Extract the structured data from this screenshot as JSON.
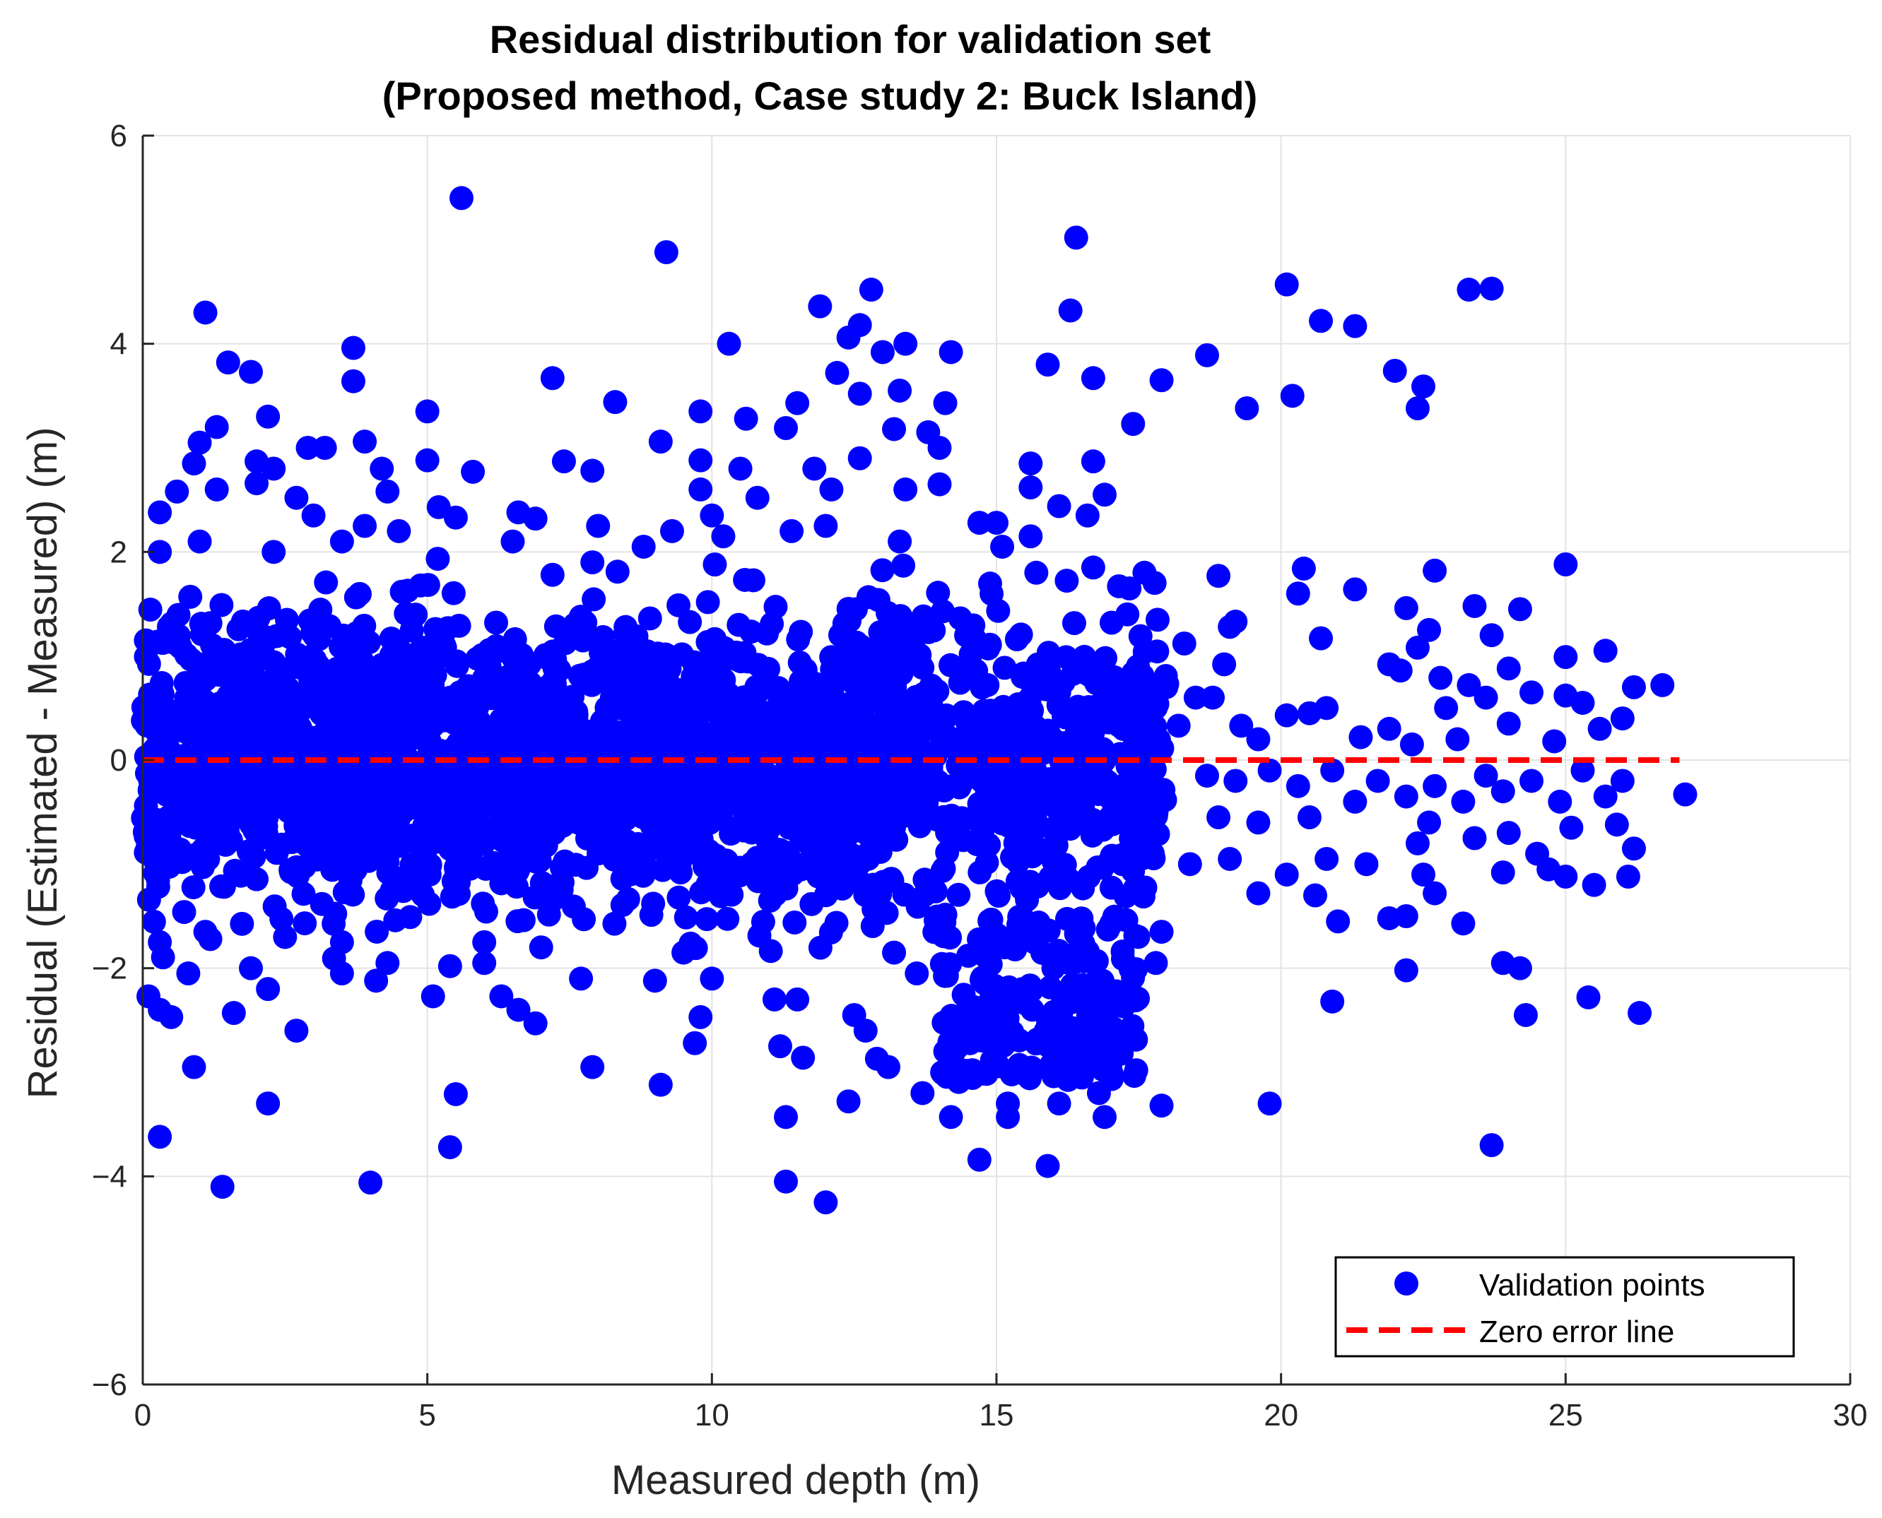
{
  "chart_data": {
    "type": "scatter",
    "title_line1": "Residual distribution for validation set",
    "title_line2": "(Proposed method, Case study 2: Buck Island)",
    "xlabel": "Measured depth (m)",
    "ylabel": "Residual (Estimated - Measured) (m)",
    "xlim": [
      0,
      30
    ],
    "ylim": [
      -6,
      6
    ],
    "xticks": [
      0,
      5,
      10,
      15,
      20,
      25,
      30
    ],
    "yticks": [
      -6,
      -4,
      -2,
      0,
      2,
      4,
      6
    ],
    "xtick_labels": [
      "0",
      "5",
      "10",
      "15",
      "20",
      "25",
      "30"
    ],
    "ytick_labels": [
      "−6",
      "−4",
      "−2",
      "0",
      "2",
      "4",
      "6"
    ],
    "grid": true,
    "legend_position": "bottom-right",
    "legend": {
      "points_label": "Validation points",
      "line_label": "Zero error line"
    },
    "colors": {
      "points": "#0000ff",
      "zero_line": "#ff0000",
      "grid": "#e3e3e3",
      "axis": "#262626"
    },
    "zero_line": {
      "y": 0,
      "x_range": [
        0,
        27
      ]
    },
    "dense_band": {
      "x_range": [
        0,
        18
      ],
      "y_core_range": [
        -1.5,
        1.5
      ],
      "y_spread_range": [
        -2.2,
        2.2
      ],
      "note": "dense cloud of overlapping points between 0 and ~18 m depth"
    },
    "series": [
      {
        "name": "Validation points",
        "points": [
          [
            5.6,
            5.4
          ],
          [
            9.2,
            4.88
          ],
          [
            16.4,
            5.02
          ],
          [
            1.1,
            4.3
          ],
          [
            12.8,
            4.52
          ],
          [
            11.9,
            4.36
          ],
          [
            16.3,
            4.32
          ],
          [
            20.1,
            4.57
          ],
          [
            20.7,
            4.22
          ],
          [
            21.3,
            4.17
          ],
          [
            23.3,
            4.52
          ],
          [
            23.7,
            4.53
          ],
          [
            12.6,
            4.18
          ],
          [
            12.4,
            4.06
          ],
          [
            10.3,
            4.0
          ],
          [
            13.4,
            4.0
          ],
          [
            13.0,
            3.92
          ],
          [
            14.2,
            3.92
          ],
          [
            3.7,
            3.96
          ],
          [
            1.5,
            3.82
          ],
          [
            1.9,
            3.73
          ],
          [
            3.7,
            3.64
          ],
          [
            7.2,
            3.67
          ],
          [
            12.2,
            3.72
          ],
          [
            15.9,
            3.8
          ],
          [
            16.7,
            3.67
          ],
          [
            17.9,
            3.65
          ],
          [
            18.7,
            3.89
          ],
          [
            22.0,
            3.74
          ],
          [
            22.5,
            3.59
          ],
          [
            20.2,
            3.5
          ],
          [
            8.3,
            3.44
          ],
          [
            11.5,
            3.43
          ],
          [
            14.1,
            3.43
          ],
          [
            13.3,
            3.55
          ],
          [
            12.6,
            3.52
          ],
          [
            19.4,
            3.38
          ],
          [
            22.4,
            3.38
          ],
          [
            2.2,
            3.3
          ],
          [
            1.3,
            3.2
          ],
          [
            5.0,
            3.35
          ],
          [
            9.8,
            3.35
          ],
          [
            10.6,
            3.28
          ],
          [
            11.3,
            3.19
          ],
          [
            13.2,
            3.18
          ],
          [
            17.4,
            3.23
          ],
          [
            1.0,
            3.05
          ],
          [
            2.9,
            3.0
          ],
          [
            3.2,
            3.0
          ],
          [
            3.9,
            3.06
          ],
          [
            9.1,
            3.06
          ],
          [
            14.0,
            3.0
          ],
          [
            13.8,
            3.15
          ],
          [
            0.9,
            2.85
          ],
          [
            2.0,
            2.87
          ],
          [
            2.3,
            2.8
          ],
          [
            4.2,
            2.8
          ],
          [
            5.0,
            2.88
          ],
          [
            5.8,
            2.77
          ],
          [
            7.4,
            2.87
          ],
          [
            7.9,
            2.78
          ],
          [
            9.8,
            2.88
          ],
          [
            10.5,
            2.8
          ],
          [
            11.8,
            2.8
          ],
          [
            12.6,
            2.9
          ],
          [
            15.6,
            2.85
          ],
          [
            16.7,
            2.87
          ],
          [
            1.3,
            2.6
          ],
          [
            0.6,
            2.58
          ],
          [
            2.0,
            2.66
          ],
          [
            2.7,
            2.52
          ],
          [
            4.3,
            2.58
          ],
          [
            5.2,
            2.43
          ],
          [
            6.6,
            2.38
          ],
          [
            9.8,
            2.6
          ],
          [
            10.8,
            2.52
          ],
          [
            12.1,
            2.6
          ],
          [
            13.4,
            2.6
          ],
          [
            14.0,
            2.65
          ],
          [
            15.6,
            2.62
          ],
          [
            16.9,
            2.55
          ],
          [
            0.3,
            2.38
          ],
          [
            3.0,
            2.35
          ],
          [
            3.9,
            2.25
          ],
          [
            5.5,
            2.33
          ],
          [
            6.9,
            2.32
          ],
          [
            8.0,
            2.25
          ],
          [
            9.3,
            2.2
          ],
          [
            10.0,
            2.35
          ],
          [
            14.7,
            2.28
          ],
          [
            15.0,
            2.28
          ],
          [
            16.1,
            2.44
          ],
          [
            16.6,
            2.35
          ],
          [
            0.3,
            2.0
          ],
          [
            1.0,
            2.1
          ],
          [
            2.3,
            2.0
          ],
          [
            3.5,
            2.1
          ],
          [
            4.5,
            2.2
          ],
          [
            6.5,
            2.1
          ],
          [
            7.9,
            1.9
          ],
          [
            8.8,
            2.05
          ],
          [
            10.2,
            2.15
          ],
          [
            11.4,
            2.2
          ],
          [
            12.0,
            2.25
          ],
          [
            13.3,
            2.1
          ],
          [
            15.1,
            2.05
          ],
          [
            15.6,
            2.15
          ],
          [
            7.2,
            1.78
          ],
          [
            15.7,
            1.8
          ],
          [
            16.7,
            1.85
          ],
          [
            17.6,
            1.8
          ],
          [
            18.9,
            1.77
          ],
          [
            20.4,
            1.84
          ],
          [
            22.7,
            1.82
          ],
          [
            25.0,
            1.88
          ],
          [
            20.3,
            1.6
          ],
          [
            21.3,
            1.64
          ],
          [
            22.2,
            1.46
          ],
          [
            23.4,
            1.48
          ],
          [
            24.2,
            1.45
          ],
          [
            17.3,
            1.4
          ],
          [
            19.1,
            1.28
          ],
          [
            19.2,
            1.33
          ],
          [
            20.7,
            1.17
          ],
          [
            22.6,
            1.25
          ],
          [
            23.7,
            1.2
          ],
          [
            18.3,
            1.12
          ],
          [
            21.9,
            0.92
          ],
          [
            22.4,
            1.08
          ],
          [
            19.0,
            0.92
          ],
          [
            22.1,
            0.86
          ],
          [
            22.8,
            0.79
          ],
          [
            23.3,
            0.72
          ],
          [
            24.0,
            0.88
          ],
          [
            25.0,
            0.99
          ],
          [
            25.7,
            1.05
          ],
          [
            26.2,
            0.7
          ],
          [
            26.7,
            0.72
          ],
          [
            18.5,
            0.6
          ],
          [
            18.8,
            0.6
          ],
          [
            20.5,
            0.45
          ],
          [
            20.8,
            0.5
          ],
          [
            22.9,
            0.5
          ],
          [
            23.6,
            0.6
          ],
          [
            24.4,
            0.65
          ],
          [
            25.0,
            0.62
          ],
          [
            25.3,
            0.55
          ],
          [
            18.2,
            0.33
          ],
          [
            19.3,
            0.33
          ],
          [
            19.6,
            0.2
          ],
          [
            20.1,
            0.43
          ],
          [
            21.4,
            0.22
          ],
          [
            21.9,
            0.3
          ],
          [
            22.3,
            0.15
          ],
          [
            23.1,
            0.2
          ],
          [
            24.0,
            0.35
          ],
          [
            24.8,
            0.18
          ],
          [
            25.6,
            0.3
          ],
          [
            26.0,
            0.4
          ],
          [
            18.7,
            -0.15
          ],
          [
            19.2,
            -0.2
          ],
          [
            19.8,
            -0.1
          ],
          [
            20.3,
            -0.25
          ],
          [
            20.9,
            -0.1
          ],
          [
            21.3,
            -0.4
          ],
          [
            21.7,
            -0.2
          ],
          [
            22.2,
            -0.35
          ],
          [
            22.7,
            -0.25
          ],
          [
            23.2,
            -0.4
          ],
          [
            23.6,
            -0.15
          ],
          [
            23.9,
            -0.3
          ],
          [
            24.4,
            -0.2
          ],
          [
            24.9,
            -0.4
          ],
          [
            25.3,
            -0.1
          ],
          [
            25.7,
            -0.35
          ],
          [
            26.0,
            -0.2
          ],
          [
            27.1,
            -0.33
          ],
          [
            18.9,
            -0.55
          ],
          [
            19.6,
            -0.6
          ],
          [
            20.5,
            -0.55
          ],
          [
            22.4,
            -0.8
          ],
          [
            22.6,
            -0.6
          ],
          [
            23.4,
            -0.75
          ],
          [
            24.0,
            -0.7
          ],
          [
            24.5,
            -0.9
          ],
          [
            25.1,
            -0.65
          ],
          [
            25.9,
            -0.62
          ],
          [
            26.2,
            -0.85
          ],
          [
            18.4,
            -1.0
          ],
          [
            19.1,
            -0.95
          ],
          [
            20.8,
            -0.95
          ],
          [
            21.5,
            -1.0
          ],
          [
            22.5,
            -1.1
          ],
          [
            23.9,
            -1.08
          ],
          [
            24.7,
            -1.05
          ],
          [
            25.0,
            -1.12
          ],
          [
            26.1,
            -1.12
          ],
          [
            19.6,
            -1.28
          ],
          [
            20.1,
            -1.1
          ],
          [
            20.6,
            -1.3
          ],
          [
            22.7,
            -1.28
          ],
          [
            25.5,
            -1.2
          ],
          [
            21.0,
            -1.55
          ],
          [
            21.9,
            -1.52
          ],
          [
            22.2,
            -1.5
          ],
          [
            23.2,
            -1.57
          ],
          [
            17.9,
            -1.65
          ],
          [
            0.3,
            -1.75
          ],
          [
            1.1,
            -1.65
          ],
          [
            2.5,
            -1.7
          ],
          [
            3.5,
            -1.75
          ],
          [
            6.0,
            -1.75
          ],
          [
            7.0,
            -1.8
          ],
          [
            9.5,
            -1.85
          ],
          [
            13.2,
            -1.85
          ],
          [
            17.8,
            -1.95
          ],
          [
            0.8,
            -2.05
          ],
          [
            1.9,
            -2.0
          ],
          [
            2.2,
            -2.2
          ],
          [
            3.5,
            -2.05
          ],
          [
            4.1,
            -2.12
          ],
          [
            4.3,
            -1.95
          ],
          [
            5.4,
            -1.98
          ],
          [
            6.0,
            -1.95
          ],
          [
            7.7,
            -2.1
          ],
          [
            9.0,
            -2.12
          ],
          [
            10.0,
            -2.1
          ],
          [
            11.5,
            -2.3
          ],
          [
            13.6,
            -2.05
          ],
          [
            16.0,
            -2.0
          ],
          [
            22.2,
            -2.02
          ],
          [
            23.9,
            -1.95
          ],
          [
            24.2,
            -2.0
          ],
          [
            0.1,
            -2.27
          ],
          [
            0.3,
            -2.4
          ],
          [
            0.5,
            -2.47
          ],
          [
            1.6,
            -2.43
          ],
          [
            2.7,
            -2.6
          ],
          [
            5.1,
            -2.27
          ],
          [
            6.3,
            -2.27
          ],
          [
            6.6,
            -2.4
          ],
          [
            6.9,
            -2.53
          ],
          [
            9.8,
            -2.47
          ],
          [
            11.1,
            -2.3
          ],
          [
            12.5,
            -2.45
          ],
          [
            12.7,
            -2.6
          ],
          [
            20.9,
            -2.32
          ],
          [
            24.3,
            -2.45
          ],
          [
            25.4,
            -2.28
          ],
          [
            26.3,
            -2.43
          ],
          [
            9.7,
            -2.72
          ],
          [
            11.2,
            -2.75
          ],
          [
            12.9,
            -2.87
          ],
          [
            14.1,
            -2.8
          ],
          [
            16.2,
            -2.72
          ],
          [
            17.2,
            -2.82
          ],
          [
            0.9,
            -2.95
          ],
          [
            7.9,
            -2.95
          ],
          [
            11.6,
            -2.86
          ],
          [
            13.1,
            -2.95
          ],
          [
            15.4,
            -3.0
          ],
          [
            16.5,
            -3.05
          ],
          [
            9.1,
            -3.12
          ],
          [
            5.5,
            -3.21
          ],
          [
            12.4,
            -3.28
          ],
          [
            13.7,
            -3.2
          ],
          [
            15.2,
            -3.3
          ],
          [
            16.1,
            -3.3
          ],
          [
            16.8,
            -3.2
          ],
          [
            17.9,
            -3.32
          ],
          [
            2.2,
            -3.3
          ],
          [
            19.8,
            -3.3
          ],
          [
            11.3,
            -3.43
          ],
          [
            14.2,
            -3.43
          ],
          [
            15.2,
            -3.43
          ],
          [
            16.9,
            -3.43
          ],
          [
            0.3,
            -3.62
          ],
          [
            5.4,
            -3.72
          ],
          [
            23.7,
            -3.7
          ],
          [
            14.7,
            -3.84
          ],
          [
            15.9,
            -3.9
          ],
          [
            1.4,
            -4.1
          ],
          [
            4.0,
            -4.06
          ],
          [
            11.3,
            -4.05
          ],
          [
            12.0,
            -4.25
          ]
        ]
      }
    ]
  }
}
